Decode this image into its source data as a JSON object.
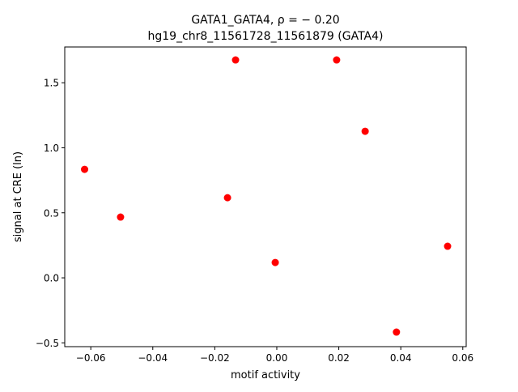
{
  "chart_data": {
    "type": "scatter",
    "title_line1": "GATA1_GATA4, ρ = − 0.20",
    "title_line2": "hg19_chr8_11561728_11561879 (GATA4)",
    "xlabel": "motif activity",
    "ylabel": "signal at CRE (ln)",
    "xlim": [
      -0.0684,
      0.0611
    ],
    "ylim": [
      -0.529,
      1.775
    ],
    "xticks": [
      -0.06,
      -0.04,
      -0.02,
      0.0,
      0.02,
      0.04,
      0.06
    ],
    "xtick_labels": [
      "−0.06",
      "−0.04",
      "−0.02",
      "0.00",
      "0.02",
      "0.04",
      "0.06"
    ],
    "yticks": [
      -0.5,
      0.0,
      0.5,
      1.0,
      1.5
    ],
    "ytick_labels": [
      "−0.5",
      "0.0",
      "0.5",
      "1.0",
      "1.5"
    ],
    "grid": false,
    "point_color": "#ff0000",
    "points": [
      {
        "x": -0.062,
        "y": 0.834
      },
      {
        "x": -0.0504,
        "y": 0.467
      },
      {
        "x": -0.0159,
        "y": 0.616
      },
      {
        "x": -0.0133,
        "y": 1.675
      },
      {
        "x": -0.0005,
        "y": 0.118
      },
      {
        "x": 0.0193,
        "y": 1.675
      },
      {
        "x": 0.0285,
        "y": 1.127
      },
      {
        "x": 0.0386,
        "y": -0.417
      },
      {
        "x": 0.0551,
        "y": 0.243
      }
    ]
  }
}
